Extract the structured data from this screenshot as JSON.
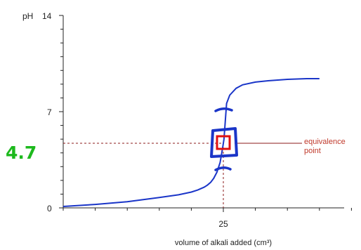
{
  "chart_data": {
    "type": "line",
    "ylabel": "pH",
    "xlabel": "volume of alkali added (cm³)",
    "y_ticks": [
      0,
      7,
      14
    ],
    "x_ticks": [
      25
    ],
    "ylim": [
      0,
      14
    ],
    "xlim": [
      0,
      45
    ],
    "series": [
      {
        "x": [
          0,
          5,
          10,
          15,
          18,
          20,
          21,
          22,
          22.5,
          23,
          23.5,
          24,
          24.5,
          24.9,
          25,
          25.1,
          25.5,
          26,
          27,
          28,
          30,
          32,
          35,
          38,
          40
        ],
        "y": [
          0.1,
          0.25,
          0.45,
          0.75,
          0.95,
          1.15,
          1.3,
          1.5,
          1.65,
          1.85,
          2.15,
          2.6,
          3.3,
          4.4,
          4.7,
          5.0,
          7.6,
          8.2,
          8.7,
          8.95,
          9.15,
          9.25,
          9.35,
          9.4,
          9.4
        ]
      }
    ],
    "equivalence_point": {
      "x": 25,
      "y": 4.7
    },
    "annotation": {
      "line1": "equivalence",
      "line2": "point"
    },
    "handwritten_value": "4.7",
    "colors": {
      "curve": "#1a35c8",
      "marks": "#1a35c8",
      "guides": "#8b1a1a",
      "point": "#e01010",
      "annotation": "#c0392b",
      "handwriting": "#1db91d"
    }
  }
}
